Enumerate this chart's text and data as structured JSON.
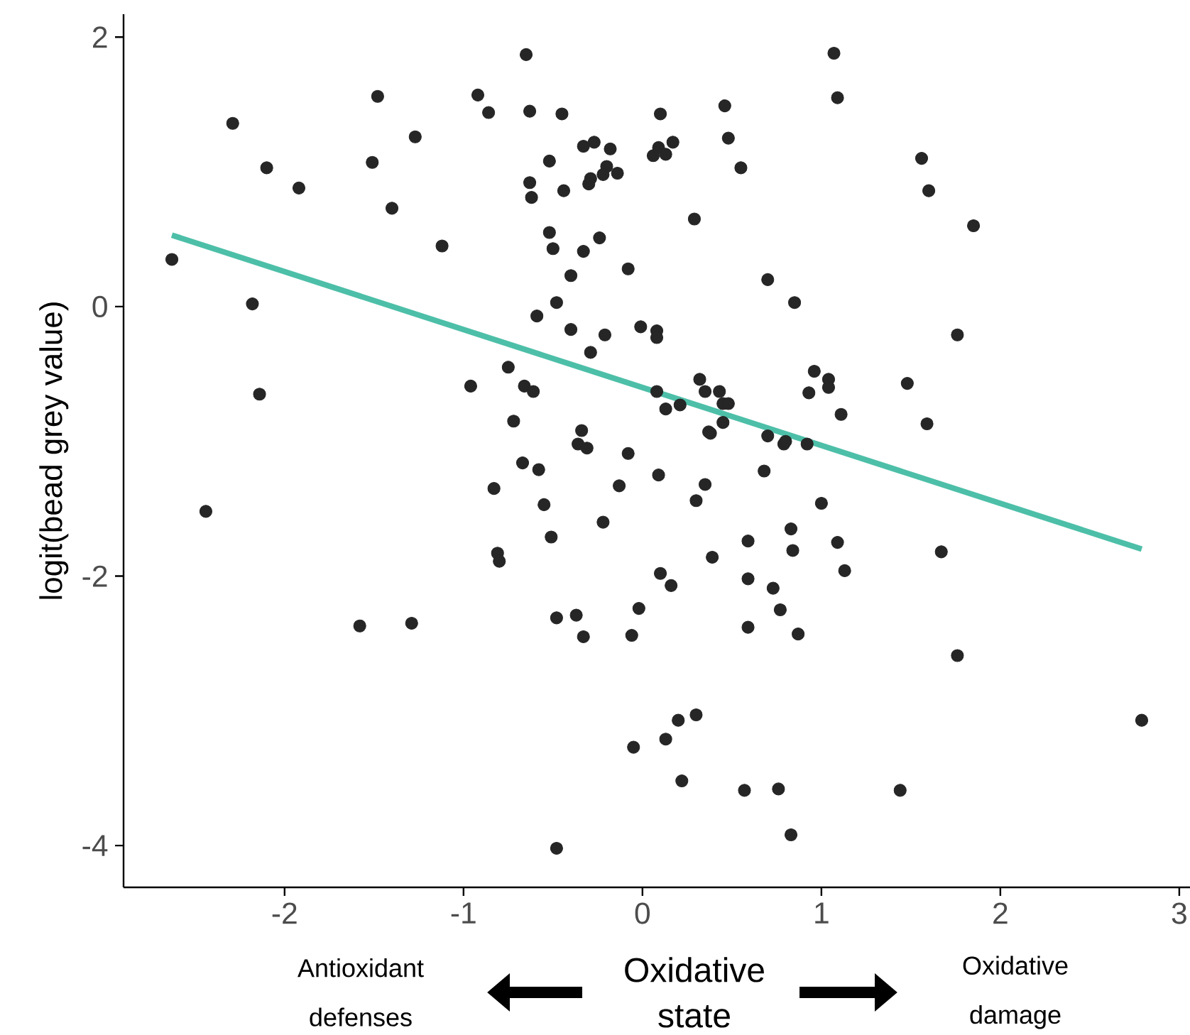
{
  "chart_data": {
    "type": "scatter",
    "ylabel": "logit(bead grey value)",
    "xlabel": "Oxidative state",
    "annotations": [
      "Antioxidant defenses",
      "Oxidative damage"
    ],
    "xlim": [
      -2.9,
      3.06
    ],
    "ylim": [
      -4.31,
      2.17
    ],
    "xticks": [
      -2,
      -1,
      0,
      1,
      2,
      3
    ],
    "yticks": [
      -4,
      -2,
      0,
      2
    ],
    "series": [
      {
        "marker": "circle",
        "color": "#262626",
        "x": [
          -2.63,
          -2.29,
          -2.18,
          -2.1,
          -2.14,
          -1.92,
          -2.44,
          -1.58,
          -1.29,
          -1.51,
          -1.48,
          -1.27,
          -1.4,
          -1.12,
          -0.92,
          -0.86,
          -0.96,
          -0.75,
          -0.72,
          -0.83,
          -0.81,
          -0.8,
          -0.65,
          -0.63,
          -0.45,
          0.1,
          0.46,
          1.07,
          1.09,
          -0.33,
          -0.27,
          -0.18,
          -0.52,
          0.06,
          0.09,
          0.17,
          0.13,
          0.48,
          0.55,
          -0.2,
          -0.29,
          -0.3,
          -0.22,
          -0.14,
          -0.63,
          -0.62,
          -0.44,
          0.29,
          -0.52,
          -0.5,
          -0.33,
          -0.24,
          -0.08,
          -0.4,
          0.7,
          0.85,
          -0.48,
          -0.59,
          -0.4,
          -0.21,
          -0.29,
          -0.01,
          0.08,
          0.08,
          -0.66,
          -0.61,
          -0.67,
          -0.58,
          -0.55,
          -0.51,
          -0.36,
          -0.31,
          -0.34,
          -0.08,
          0.09,
          -0.13,
          -0.22,
          0.38,
          0.35,
          0.3,
          0.68,
          0.7,
          0.79,
          0.8,
          0.92,
          1.0,
          0.59,
          0.83,
          0.84,
          1.09,
          1.13,
          0.39,
          0.1,
          0.16,
          0.59,
          0.73,
          0.77,
          0.59,
          0.87,
          -0.48,
          -0.37,
          -0.33,
          -0.06,
          -0.02,
          0.3,
          0.2,
          0.13,
          -0.05,
          0.22,
          0.57,
          0.76,
          1.44,
          0.83,
          -0.48,
          0.32,
          0.35,
          0.43,
          0.45,
          0.48,
          0.13,
          0.21,
          0.08,
          0.45,
          0.37,
          0.96,
          1.04,
          1.04,
          0.93,
          1.11,
          1.56,
          1.6,
          1.85,
          1.76,
          1.48,
          1.59,
          1.67,
          1.76,
          2.79
        ],
        "values": [
          0.35,
          1.36,
          0.02,
          1.03,
          -0.65,
          0.88,
          -1.52,
          -2.37,
          -2.35,
          1.07,
          1.56,
          1.26,
          0.73,
          0.45,
          1.57,
          1.44,
          -0.59,
          -0.45,
          -0.85,
          -1.35,
          -1.83,
          -1.89,
          1.87,
          1.45,
          1.43,
          1.43,
          1.49,
          1.88,
          1.55,
          1.19,
          1.22,
          1.17,
          1.08,
          1.12,
          1.18,
          1.22,
          1.13,
          1.25,
          1.03,
          1.04,
          0.95,
          0.91,
          0.98,
          0.99,
          0.92,
          0.81,
          0.86,
          0.65,
          0.55,
          0.43,
          0.41,
          0.51,
          0.28,
          0.23,
          0.2,
          0.03,
          0.03,
          -0.07,
          -0.17,
          -0.21,
          -0.34,
          -0.15,
          -0.18,
          -0.23,
          -0.59,
          -0.63,
          -1.16,
          -1.21,
          -1.47,
          -1.71,
          -1.02,
          -1.05,
          -0.92,
          -1.09,
          -1.25,
          -1.33,
          -1.6,
          -0.94,
          -1.32,
          -1.44,
          -1.22,
          -0.96,
          -1.02,
          -1.0,
          -1.02,
          -1.46,
          -1.74,
          -1.65,
          -1.81,
          -1.75,
          -1.96,
          -1.86,
          -1.98,
          -2.07,
          -2.02,
          -2.09,
          -2.25,
          -2.38,
          -2.43,
          -2.31,
          -2.29,
          -2.45,
          -2.44,
          -2.24,
          -3.03,
          -3.07,
          -3.21,
          -3.27,
          -3.52,
          -3.59,
          -3.58,
          -3.59,
          -3.92,
          -4.02,
          -0.54,
          -0.63,
          -0.63,
          -0.72,
          -0.72,
          -0.76,
          -0.73,
          -0.63,
          -0.86,
          -0.93,
          -0.48,
          -0.54,
          -0.6,
          -0.64,
          -0.8,
          1.1,
          0.86,
          0.6,
          -0.21,
          -0.57,
          -0.87,
          -1.82,
          -2.59,
          -3.07
        ]
      },
      {
        "type": "line",
        "color": "#4dbfa8",
        "x": [
          -2.63,
          2.79
        ],
        "values": [
          0.53,
          -1.8
        ]
      }
    ]
  }
}
